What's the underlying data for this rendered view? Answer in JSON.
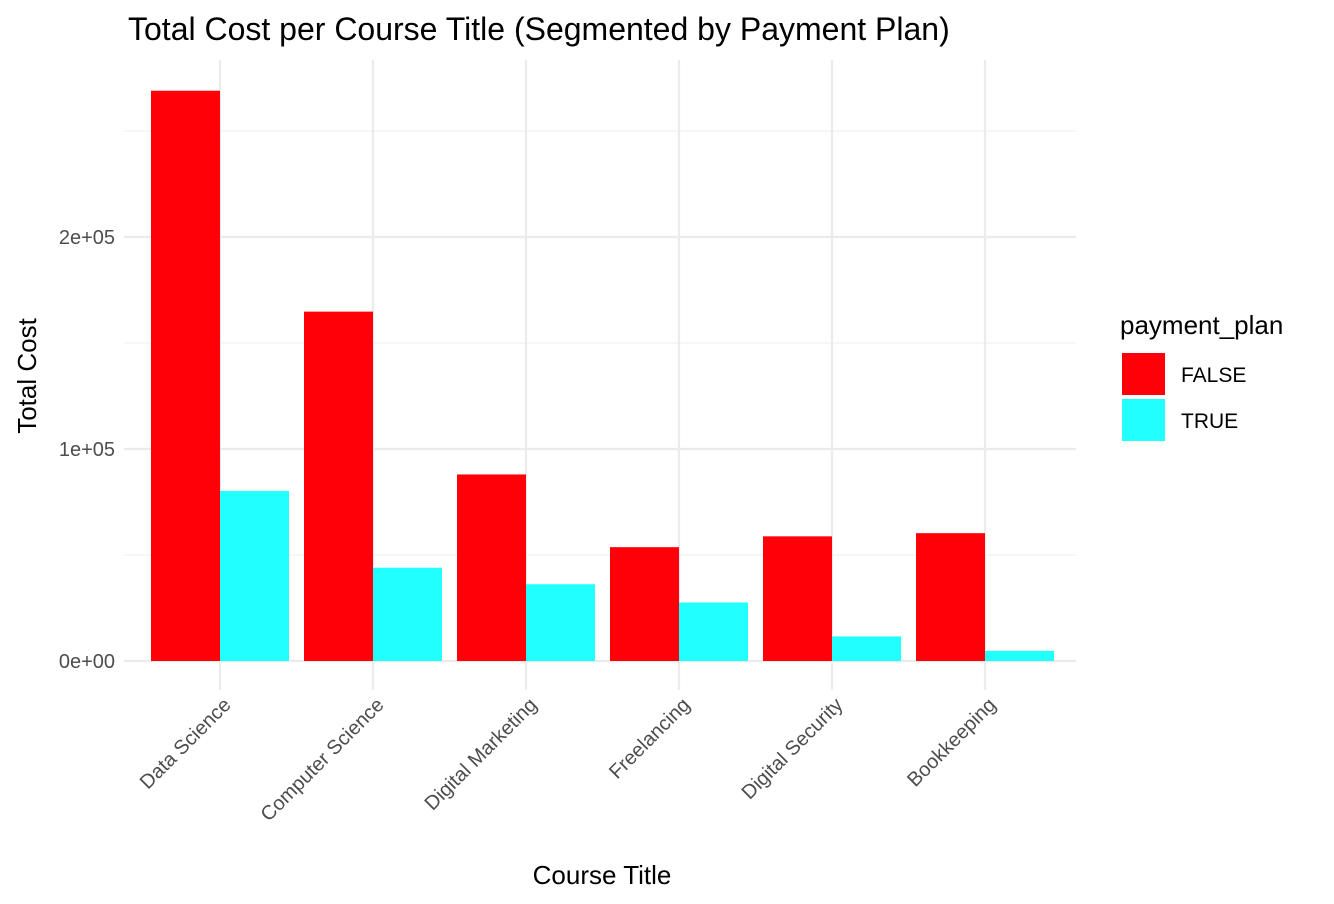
{
  "chart_data": {
    "type": "bar",
    "title": "Total Cost per Course Title (Segmented by Payment Plan)",
    "xlabel": "Course Title",
    "ylabel": "Total Cost",
    "categories": [
      "Data Science",
      "Computer Science",
      "Digital Marketing",
      "Freelancing",
      "Digital Security",
      "Bookkeeping"
    ],
    "series": [
      {
        "name": "FALSE",
        "color": "#ff0008",
        "values": [
          269000,
          164800,
          88000,
          53700,
          58800,
          60300
        ]
      },
      {
        "name": "TRUE",
        "color": "#22ffff",
        "values": [
          80200,
          44000,
          36200,
          27600,
          11600,
          4800
        ]
      }
    ],
    "ylim": [
      0,
      270000
    ],
    "yticks": [
      {
        "value": 0,
        "label": "0e+00"
      },
      {
        "value": 100000,
        "label": "1e+05"
      },
      {
        "value": 200000,
        "label": "2e+05"
      }
    ],
    "legend": {
      "title": "payment_plan",
      "position": "right"
    },
    "grid": true,
    "bar_layout": "dodged"
  }
}
